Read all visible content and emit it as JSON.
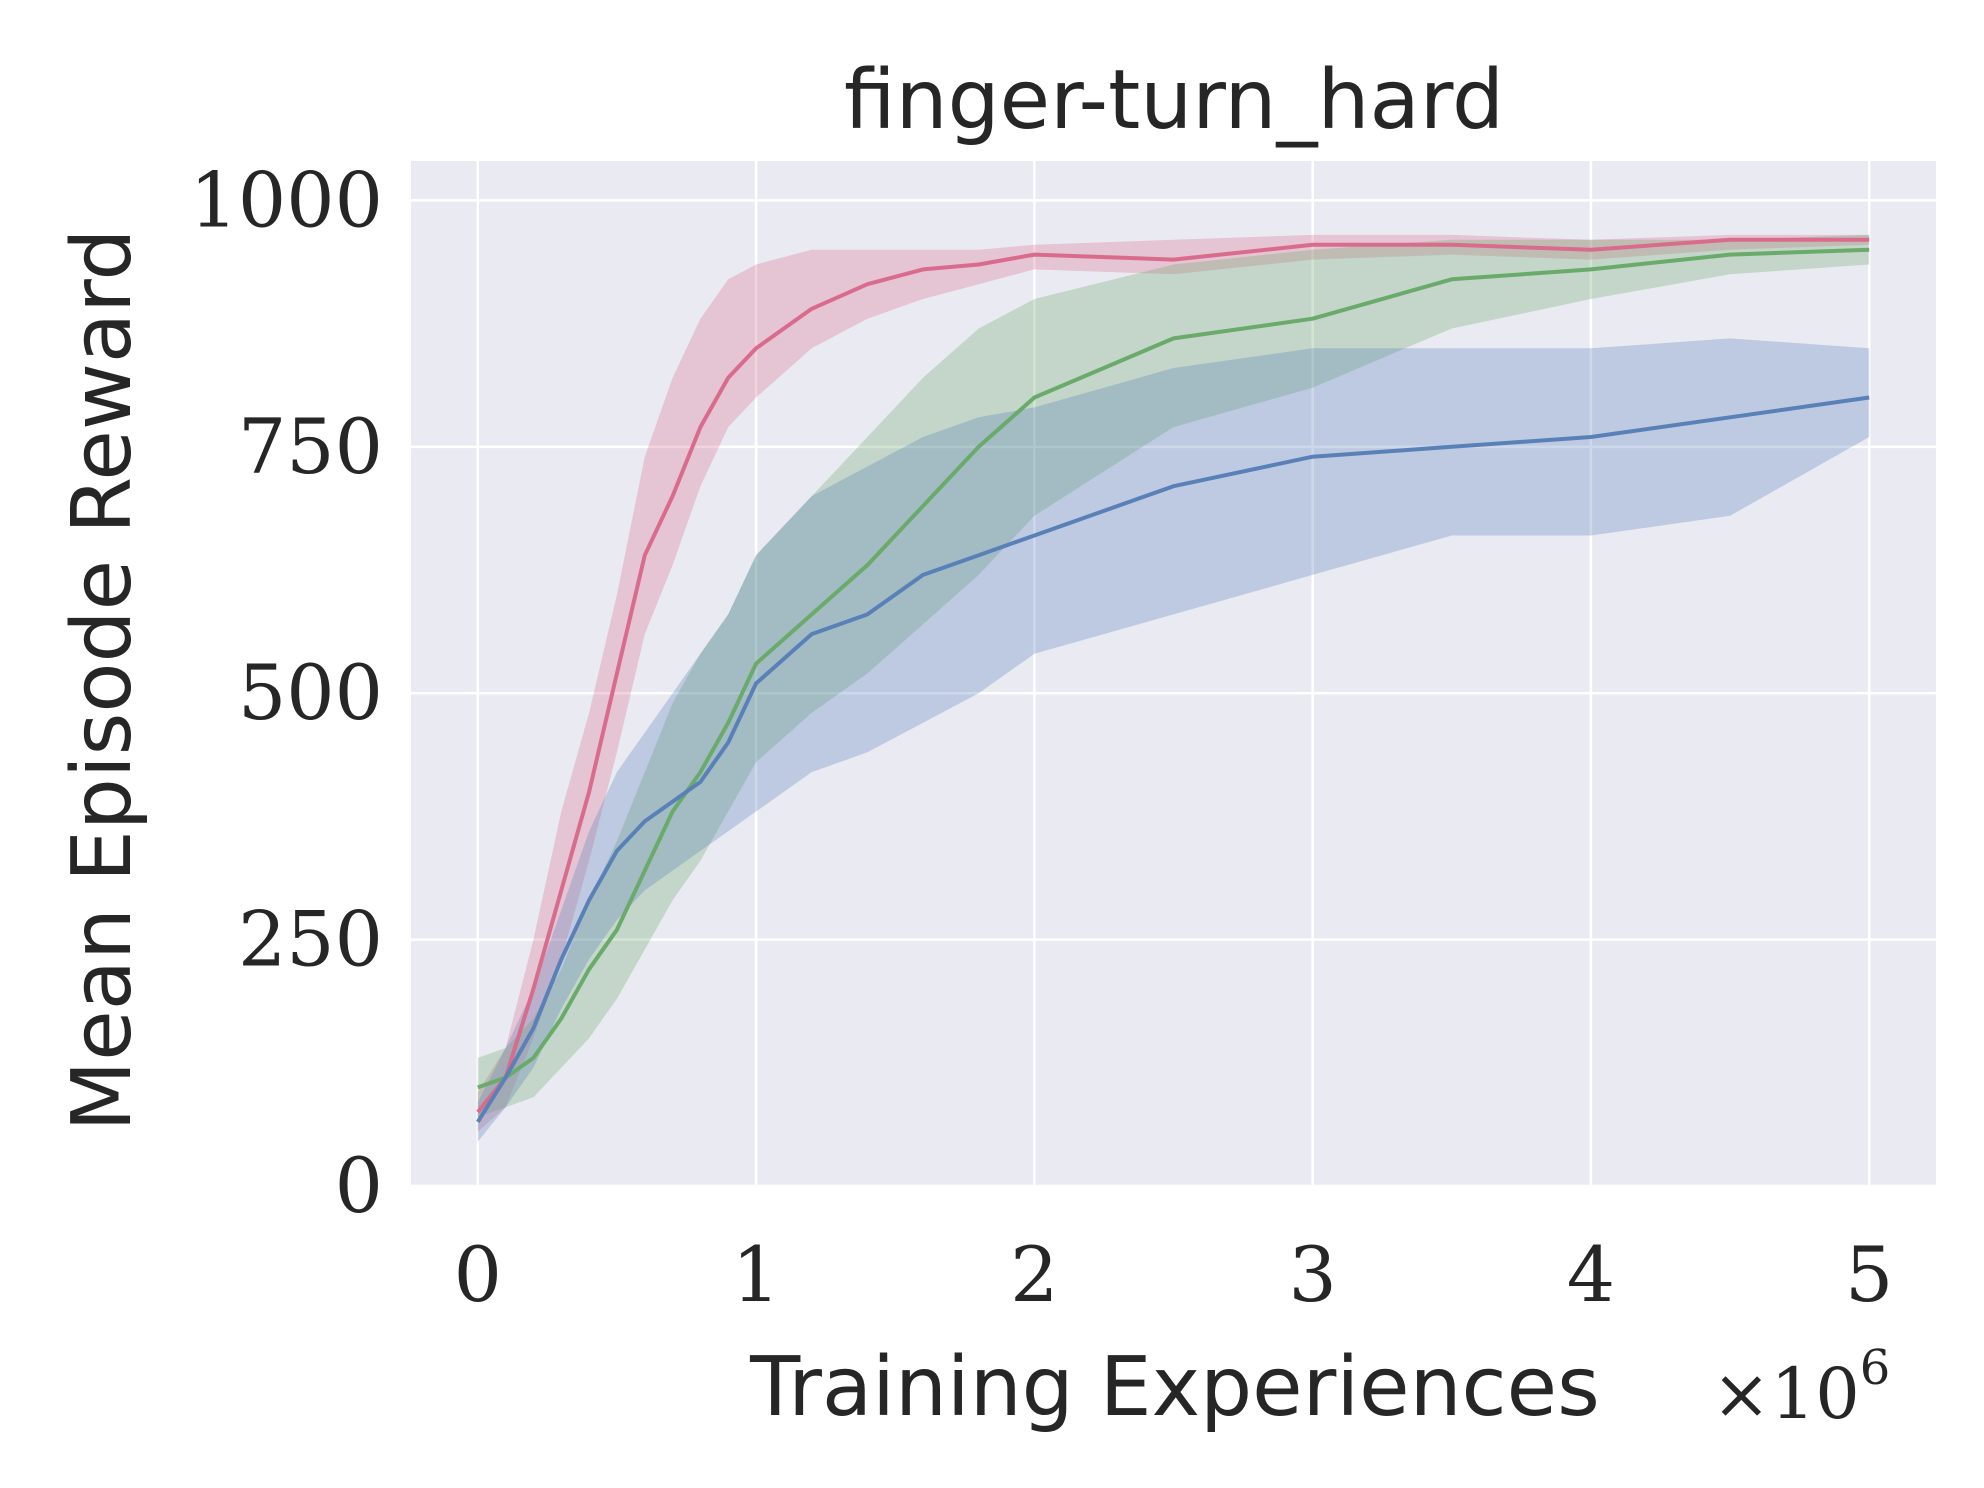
{
  "chart_data": {
    "type": "line",
    "title": "finger-turn_hard",
    "xlabel": "Training Experiences",
    "ylabel": "Mean Episode Reward",
    "x_offset_label": "×10",
    "x_offset_exponent": "6",
    "xlim": [
      -0.24,
      5.24
    ],
    "ylim": [
      0,
      1040
    ],
    "xticks": [
      0,
      1,
      2,
      3,
      4,
      5
    ],
    "xtick_labels": [
      "0",
      "1",
      "2",
      "3",
      "4",
      "5"
    ],
    "yticks": [
      0,
      250,
      500,
      750,
      1000
    ],
    "ytick_labels": [
      "0",
      "250",
      "500",
      "750",
      "1000"
    ],
    "grid": true,
    "legend": "none",
    "colors": {
      "background": "#eaeaf2",
      "grid": "#ffffff",
      "text": "#262626"
    },
    "series": [
      {
        "color": "#d96c8d",
        "x": [
          0.0,
          0.1,
          0.2,
          0.3,
          0.4,
          0.5,
          0.6,
          0.7,
          0.8,
          0.9,
          1.0,
          1.2,
          1.4,
          1.6,
          1.8,
          2.0,
          2.5,
          3.0,
          3.5,
          4.0,
          4.5,
          5.0
        ],
        "mean": [
          75,
          110,
          200,
          300,
          400,
          520,
          640,
          700,
          770,
          820,
          850,
          890,
          915,
          930,
          935,
          945,
          940,
          955,
          955,
          950,
          960,
          960
        ],
        "lower": [
          55,
          80,
          150,
          230,
          330,
          440,
          560,
          630,
          710,
          770,
          800,
          850,
          880,
          900,
          915,
          930,
          925,
          940,
          945,
          940,
          950,
          955
        ],
        "upper": [
          95,
          140,
          250,
          380,
          480,
          600,
          740,
          820,
          880,
          920,
          935,
          950,
          950,
          950,
          950,
          955,
          960,
          965,
          965,
          960,
          965,
          965
        ]
      },
      {
        "color": "#6aaa6a",
        "x": [
          0.0,
          0.1,
          0.2,
          0.3,
          0.4,
          0.5,
          0.6,
          0.7,
          0.8,
          0.9,
          1.0,
          1.2,
          1.4,
          1.6,
          1.8,
          2.0,
          2.5,
          3.0,
          3.5,
          4.0,
          4.5,
          5.0
        ],
        "mean": [
          100,
          110,
          130,
          170,
          220,
          260,
          320,
          380,
          420,
          470,
          530,
          580,
          630,
          690,
          750,
          800,
          860,
          880,
          920,
          930,
          945,
          950
        ],
        "lower": [
          70,
          80,
          90,
          120,
          150,
          190,
          240,
          290,
          330,
          380,
          430,
          480,
          520,
          570,
          620,
          680,
          770,
          810,
          870,
          900,
          925,
          935
        ],
        "upper": [
          130,
          140,
          170,
          220,
          290,
          350,
          420,
          490,
          540,
          580,
          640,
          700,
          760,
          820,
          870,
          900,
          935,
          950,
          960,
          960,
          960,
          965
        ]
      },
      {
        "color": "#5a80b8",
        "x": [
          0.0,
          0.1,
          0.2,
          0.3,
          0.4,
          0.5,
          0.6,
          0.7,
          0.8,
          0.9,
          1.0,
          1.2,
          1.4,
          1.6,
          1.8,
          2.0,
          2.5,
          3.0,
          3.5,
          4.0,
          4.5,
          5.0
        ],
        "mean": [
          65,
          110,
          160,
          230,
          290,
          340,
          370,
          390,
          410,
          450,
          510,
          560,
          580,
          620,
          640,
          660,
          710,
          740,
          750,
          760,
          780,
          800
        ],
        "lower": [
          45,
          80,
          120,
          180,
          230,
          270,
          300,
          320,
          340,
          360,
          380,
          420,
          440,
          470,
          500,
          540,
          580,
          620,
          660,
          660,
          680,
          760
        ],
        "upper": [
          85,
          140,
          200,
          280,
          360,
          420,
          460,
          500,
          540,
          580,
          640,
          700,
          730,
          760,
          780,
          790,
          830,
          850,
          850,
          850,
          860,
          850
        ]
      }
    ]
  }
}
